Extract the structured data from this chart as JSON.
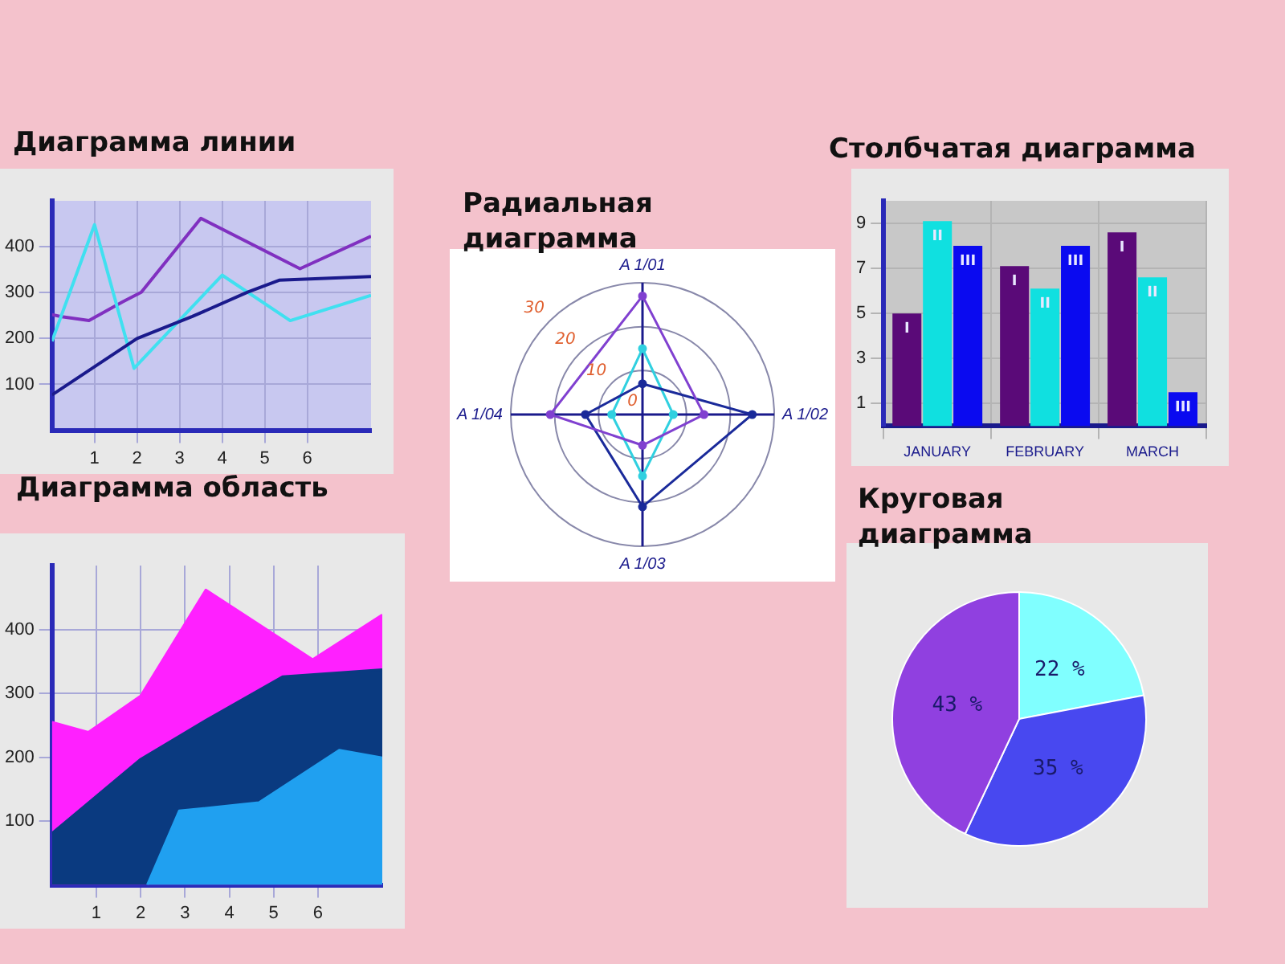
{
  "chart_data": [
    {
      "type": "line",
      "title": "Диаграмма линии",
      "xlim": [
        0,
        7.5
      ],
      "xticks": [
        1,
        2,
        3,
        4,
        5,
        6
      ],
      "ylim": [
        0,
        500
      ],
      "yticks": [
        100,
        200,
        300,
        400
      ],
      "grid": true,
      "series": [
        {
          "color": "#8030c0",
          "x": [
            0,
            0.2,
            0.87,
            1.66,
            2.1,
            3.5,
            5.83,
            7.5
          ],
          "values": [
            252,
            248,
            239,
            280,
            301,
            462,
            352,
            423
          ]
        },
        {
          "color": "#40e0f0",
          "x": [
            0,
            1,
            1.93,
            4,
            5.6,
            7.5
          ],
          "values": [
            194,
            448,
            135,
            338,
            239,
            294
          ]
        },
        {
          "color": "#1a1a8c",
          "x": [
            0,
            2,
            3.3,
            4.6,
            5.34,
            7.5
          ],
          "values": [
            77,
            200,
            248,
            301,
            327,
            335
          ]
        }
      ]
    },
    {
      "type": "radar",
      "title": "Радиальная диаграмма",
      "categories": [
        "A 1/01",
        "A 1/02",
        "A 1/03",
        "A 1/04"
      ],
      "ylim": [
        0,
        30
      ],
      "yticks": [
        0,
        10,
        20,
        30
      ],
      "grid": true,
      "series": [
        {
          "color": "#8040d0",
          "values": [
            27,
            14,
            7,
            21
          ]
        },
        {
          "color": "#1a2a9a",
          "values": [
            7,
            25,
            21,
            13
          ]
        },
        {
          "color": "#30d0e0",
          "values": [
            15,
            7,
            14,
            7
          ]
        }
      ]
    },
    {
      "type": "bar",
      "title": "Столбчатая диаграмма",
      "categories": [
        "JANUARY",
        "FEBRUARY",
        "MARCH"
      ],
      "ylim": [
        0,
        10
      ],
      "yticks": [
        1,
        3,
        5,
        7,
        9
      ],
      "grid": true,
      "series": [
        {
          "name": "I",
          "color": "#5a0a78",
          "values": [
            5.0,
            7.1,
            8.6
          ]
        },
        {
          "name": "II",
          "color": "#10e0e0",
          "values": [
            9.1,
            6.1,
            6.6
          ]
        },
        {
          "name": "III",
          "color": "#0a0af0",
          "values": [
            8.0,
            8.0,
            1.5
          ]
        }
      ]
    },
    {
      "type": "area",
      "title": "Диаграмма область",
      "xlim": [
        0,
        7.45
      ],
      "xticks": [
        1,
        2,
        3,
        4,
        5,
        6
      ],
      "ylim": [
        0,
        500
      ],
      "yticks": [
        100,
        200,
        300,
        400
      ],
      "grid": true,
      "series": [
        {
          "color": "#ff20ff",
          "x": [
            0,
            0.82,
            2,
            3.47,
            5.88,
            7.45
          ],
          "values": [
            255,
            239,
            296,
            462,
            353,
            423
          ]
        },
        {
          "color": "#0a3a80",
          "x": [
            0,
            2,
            3.47,
            5.2,
            7.45
          ],
          "values": [
            81,
            197,
            258,
            326,
            337
          ]
        },
        {
          "color": "#20a0f0",
          "x": [
            2.15,
            2.87,
            4.67,
            6.48,
            7.45
          ],
          "values": [
            0,
            116,
            129,
            211,
            199
          ]
        }
      ]
    },
    {
      "type": "pie",
      "title": "Круговая диаграмма",
      "categories": [
        null,
        null,
        null
      ],
      "values": [
        22,
        35,
        43
      ],
      "colors": [
        "#80ffff",
        "#4848f0",
        "#9040e0"
      ],
      "value_labels": [
        "22 %",
        "35 %",
        "43 %"
      ]
    }
  ]
}
